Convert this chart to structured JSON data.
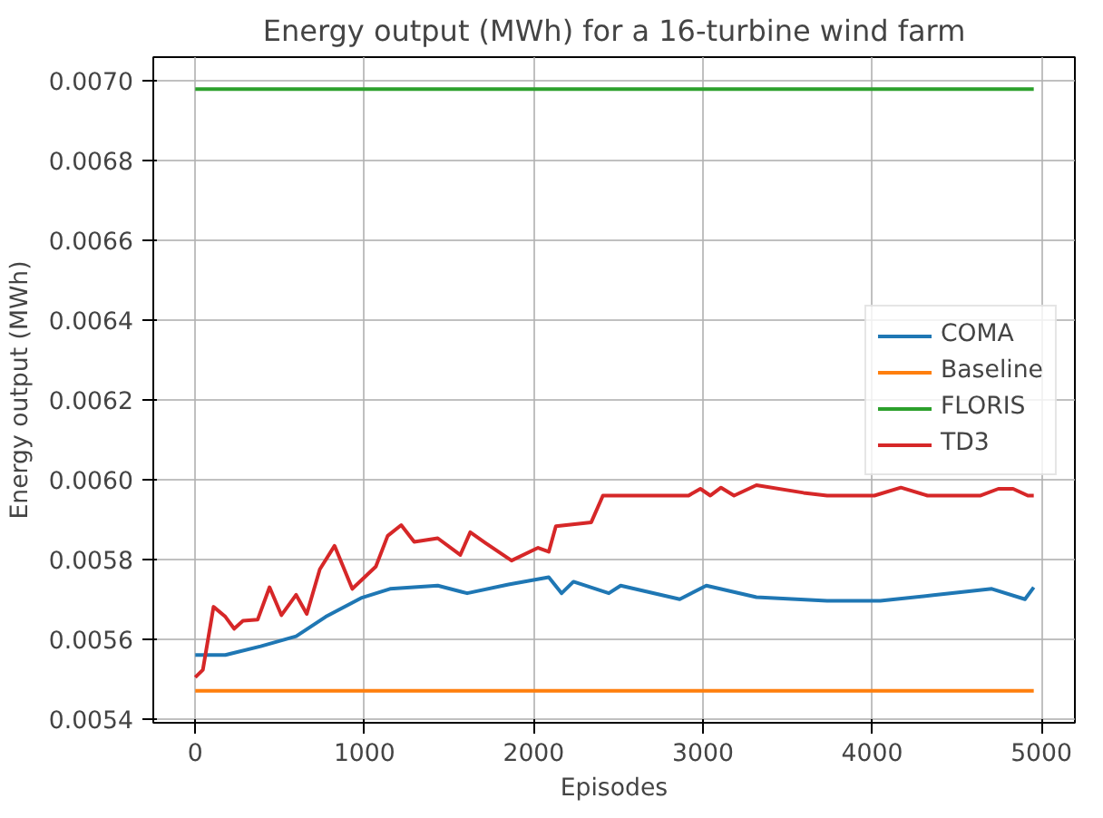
{
  "chart_data": {
    "type": "line",
    "title": "Energy output (MWh) for a 16-turbine wind farm",
    "xlabel": "Episodes",
    "ylabel": "Energy output (MWh)",
    "xlim": [
      -248,
      5198
    ],
    "ylim": [
      0.00539,
      0.00706
    ],
    "xticks": [
      0,
      1000,
      2000,
      3000,
      4000,
      5000
    ],
    "yticks": [
      {
        "value": 0.0054,
        "label": "0.0054"
      },
      {
        "value": 0.0056,
        "label": "0.0056"
      },
      {
        "value": 0.0058,
        "label": "0.0058"
      },
      {
        "value": 0.006,
        "label": "0.0060"
      },
      {
        "value": 0.0062,
        "label": "0.0062"
      },
      {
        "value": 0.0064,
        "label": "0.0064"
      },
      {
        "value": 0.0066,
        "label": "0.0066"
      },
      {
        "value": 0.0068,
        "label": "0.0068"
      },
      {
        "value": 0.007,
        "label": "0.0070"
      }
    ],
    "grid": true,
    "legend": "right",
    "marker": "none",
    "line_style": "solid",
    "series": [
      {
        "name": "COMA",
        "color": "#1f77b4",
        "x": [
          0,
          178,
          387,
          596,
          771,
          980,
          1151,
          1433,
          1607,
          1851,
          2089,
          2165,
          2235,
          2444,
          2514,
          2863,
          3020,
          3316,
          3734,
          4048,
          4362,
          4707,
          4903,
          4955
        ],
        "values": [
          0.00556,
          0.00556,
          0.005582,
          0.005607,
          0.005656,
          0.005703,
          0.005726,
          0.005734,
          0.005715,
          0.005737,
          0.005755,
          0.005715,
          0.005744,
          0.005715,
          0.005734,
          0.0057,
          0.005734,
          0.005705,
          0.005696,
          0.005696,
          0.00571,
          0.005726,
          0.0057,
          0.00573
        ]
      },
      {
        "name": "Baseline",
        "color": "#ff7f0e",
        "x": [
          0,
          4955
        ],
        "values": [
          0.00547,
          0.00547
        ]
      },
      {
        "name": "FLORIS",
        "color": "#2ca02c",
        "x": [
          0,
          4955
        ],
        "values": [
          0.00698,
          0.00698
        ]
      },
      {
        "name": "TD3",
        "color": "#d62728",
        "x": [
          0,
          45,
          108,
          178,
          230,
          282,
          369,
          439,
          509,
          596,
          659,
          736,
          823,
          928,
          1067,
          1137,
          1217,
          1294,
          1433,
          1566,
          1625,
          1712,
          1869,
          2026,
          2089,
          2131,
          2340,
          2409,
          2915,
          2985,
          3044,
          3107,
          3184,
          3316,
          3595,
          3734,
          4013,
          4170,
          4327,
          4641,
          4746,
          4833,
          4920,
          4955
        ],
        "values": [
          0.005504,
          0.005523,
          0.005681,
          0.005656,
          0.005626,
          0.005646,
          0.005649,
          0.00573,
          0.00566,
          0.005711,
          0.005663,
          0.005775,
          0.005834,
          0.005726,
          0.005782,
          0.005859,
          0.005886,
          0.005844,
          0.005853,
          0.005811,
          0.005868,
          0.005842,
          0.005797,
          0.005829,
          0.005819,
          0.005883,
          0.005893,
          0.00596,
          0.00596,
          0.005977,
          0.00596,
          0.00598,
          0.00596,
          0.005986,
          0.005967,
          0.00596,
          0.00596,
          0.00598,
          0.00596,
          0.00596,
          0.005977,
          0.005977,
          0.00596,
          0.00596
        ]
      }
    ]
  }
}
